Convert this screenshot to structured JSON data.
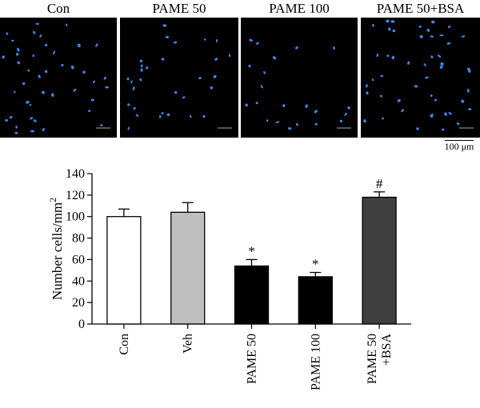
{
  "panels": [
    {
      "label": "Con"
    },
    {
      "label": "PAME 50"
    },
    {
      "label": "PAME 100"
    },
    {
      "label": "PAME 50+BSA"
    }
  ],
  "scale_bar": {
    "value": "100",
    "unit": "μm"
  },
  "colors": {
    "nucleus": "#3d86e8",
    "micro_bg": "#000000",
    "panel_scale": "#8a8a66"
  },
  "chart_data": {
    "type": "bar",
    "title": "",
    "xlabel": "",
    "ylabel": "Number cells/mm",
    "ylabel_superscript": "2",
    "categories": [
      {
        "lines": [
          "Con"
        ]
      },
      {
        "lines": [
          "Veh"
        ]
      },
      {
        "lines": [
          "PAME 50"
        ]
      },
      {
        "lines": [
          "PAME 100"
        ]
      },
      {
        "lines": [
          "PAME 50",
          "+BSA"
        ]
      }
    ],
    "values": [
      100,
      104,
      54,
      44,
      118
    ],
    "errors": [
      7,
      9,
      6,
      4,
      5
    ],
    "fills": [
      "#ffffff",
      "#bfbfbf",
      "#000000",
      "#000000",
      "#3f3f3f"
    ],
    "significance": [
      "",
      "",
      "*",
      "*",
      "#"
    ],
    "ylim": [
      0,
      140
    ],
    "yticks": [
      0,
      20,
      40,
      60,
      80,
      100,
      120,
      140
    ],
    "grid": false,
    "legend": "none"
  }
}
